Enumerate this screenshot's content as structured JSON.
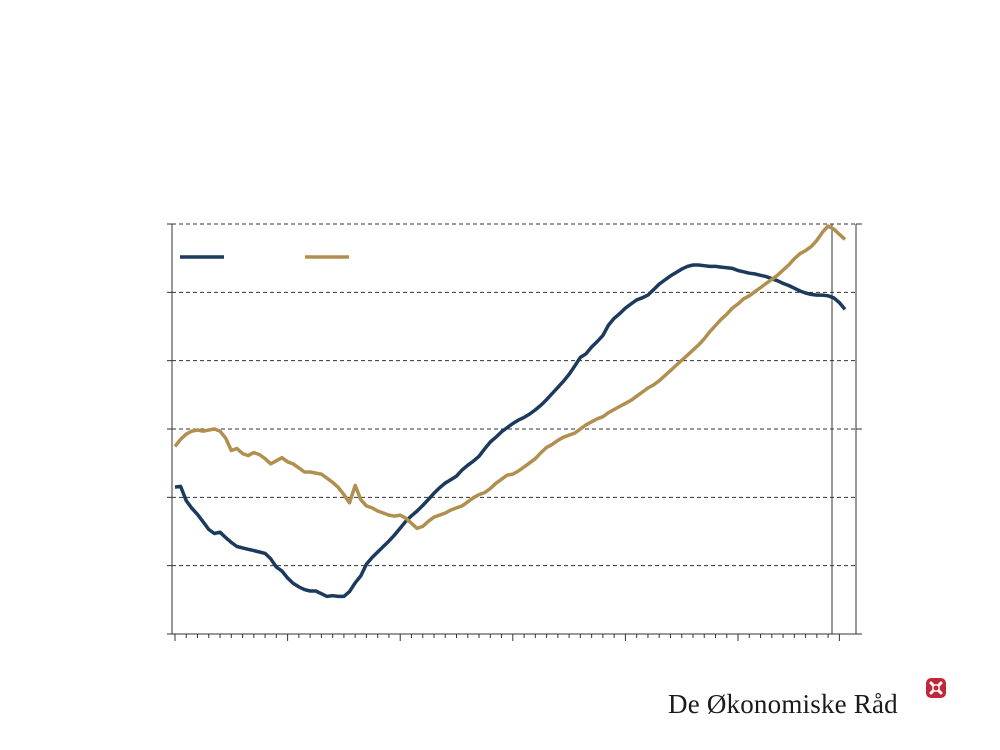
{
  "brand": {
    "name": "De Økonomiske Råd",
    "mark_color": "#c0273a"
  },
  "chart_data": {
    "type": "line",
    "title": "",
    "xlabel": "",
    "ylabel": "",
    "grid": true,
    "legend": "top-left",
    "x": [
      0,
      1,
      2,
      3,
      4,
      5,
      6,
      7,
      8,
      9,
      10,
      11,
      12,
      13,
      14,
      15,
      16,
      17,
      18,
      19,
      20,
      21,
      22,
      23,
      24,
      25,
      26,
      27,
      28,
      29,
      30,
      31,
      32,
      33,
      34,
      35,
      36,
      37,
      38,
      39,
      40,
      41,
      42,
      43,
      44,
      45,
      46,
      47,
      48,
      49,
      50,
      51,
      52,
      53,
      54,
      55,
      56,
      57,
      58,
      59,
      60,
      61,
      62,
      63,
      64,
      65,
      66,
      67,
      68,
      69,
      70,
      71,
      72,
      73,
      74,
      75,
      76,
      77,
      78,
      79,
      80,
      81,
      82,
      83,
      84,
      85,
      86,
      87,
      88,
      89,
      90,
      91,
      92,
      93,
      94,
      95,
      96,
      97,
      98,
      99,
      100,
      101,
      102,
      103,
      104,
      105,
      106,
      107,
      108,
      109,
      110,
      111,
      112,
      113,
      114,
      115,
      116,
      117,
      118,
      119
    ],
    "ylim_left": [
      0,
      6
    ],
    "ylim_right": [
      0,
      4
    ],
    "series": [
      {
        "name": "",
        "color": "#1b3a5c",
        "axis": "left",
        "values": [
          2.15,
          2.16,
          1.95,
          1.84,
          1.75,
          1.64,
          1.53,
          1.47,
          1.49,
          1.41,
          1.34,
          1.28,
          1.26,
          1.24,
          1.22,
          1.2,
          1.18,
          1.1,
          0.98,
          0.92,
          0.82,
          0.74,
          0.69,
          0.65,
          0.63,
          0.63,
          0.59,
          0.55,
          0.56,
          0.55,
          0.55,
          0.62,
          0.75,
          0.85,
          1.02,
          1.12,
          1.2,
          1.28,
          1.36,
          1.45,
          1.55,
          1.65,
          1.73,
          1.8,
          1.88,
          1.97,
          2.06,
          2.14,
          2.21,
          2.26,
          2.31,
          2.4,
          2.47,
          2.53,
          2.6,
          2.71,
          2.81,
          2.88,
          2.96,
          3.02,
          3.08,
          3.13,
          3.17,
          3.22,
          3.28,
          3.35,
          3.43,
          3.52,
          3.61,
          3.7,
          3.8,
          3.92,
          4.05,
          4.1,
          4.2,
          4.28,
          4.37,
          4.52,
          4.62,
          4.69,
          4.77,
          4.83,
          4.89,
          4.92,
          4.96,
          5.04,
          5.12,
          5.18,
          5.24,
          5.29,
          5.34,
          5.38,
          5.4,
          5.4,
          5.39,
          5.38,
          5.38,
          5.37,
          5.36,
          5.35,
          5.32,
          5.3,
          5.28,
          5.27,
          5.25,
          5.23,
          5.2,
          5.17,
          5.13,
          5.1,
          5.06,
          5.02,
          4.99,
          4.97,
          4.96,
          4.96,
          4.95,
          4.92,
          4.85,
          4.75
        ]
      },
      {
        "name": "",
        "color": "#b08f4f",
        "axis": "right",
        "values": [
          1.83,
          1.9,
          1.95,
          1.98,
          1.99,
          1.98,
          1.99,
          2.0,
          1.98,
          1.91,
          1.79,
          1.81,
          1.76,
          1.74,
          1.77,
          1.75,
          1.71,
          1.66,
          1.69,
          1.72,
          1.68,
          1.66,
          1.62,
          1.58,
          1.58,
          1.57,
          1.56,
          1.52,
          1.48,
          1.43,
          1.36,
          1.28,
          1.45,
          1.31,
          1.25,
          1.23,
          1.2,
          1.18,
          1.16,
          1.15,
          1.16,
          1.13,
          1.08,
          1.03,
          1.05,
          1.1,
          1.14,
          1.16,
          1.18,
          1.21,
          1.23,
          1.25,
          1.29,
          1.33,
          1.36,
          1.38,
          1.42,
          1.47,
          1.51,
          1.55,
          1.56,
          1.59,
          1.63,
          1.67,
          1.71,
          1.77,
          1.82,
          1.85,
          1.89,
          1.92,
          1.94,
          1.96,
          2.0,
          2.04,
          2.07,
          2.1,
          2.12,
          2.16,
          2.19,
          2.22,
          2.25,
          2.28,
          2.32,
          2.36,
          2.4,
          2.43,
          2.47,
          2.52,
          2.57,
          2.62,
          2.67,
          2.72,
          2.77,
          2.82,
          2.88,
          2.95,
          3.01,
          3.07,
          3.12,
          3.18,
          3.22,
          3.27,
          3.3,
          3.34,
          3.38,
          3.42,
          3.46,
          3.5,
          3.55,
          3.6,
          3.66,
          3.71,
          3.74,
          3.78,
          3.84,
          3.92,
          3.98,
          3.95,
          3.9,
          3.85
        ]
      }
    ],
    "x_ticks": [
      0,
      20,
      40,
      60,
      80,
      100,
      118
    ]
  }
}
